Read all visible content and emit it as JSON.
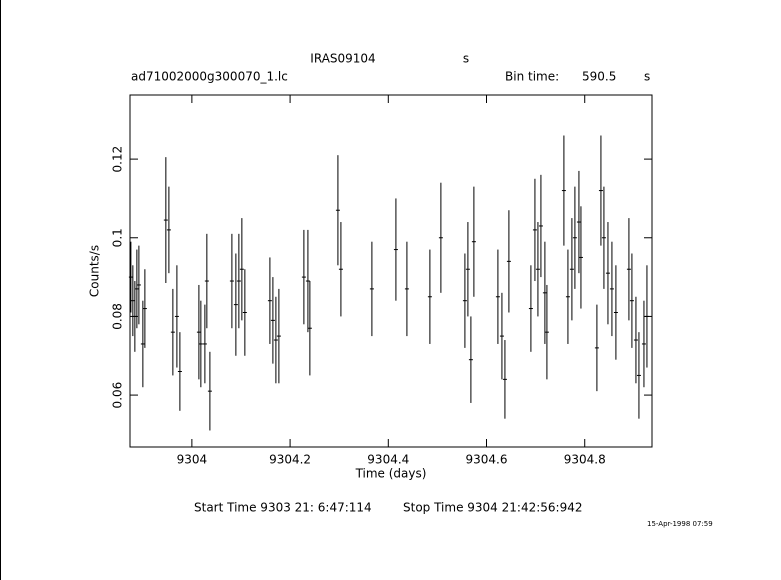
{
  "chart_data": {
    "type": "errorbar",
    "title": "IRAS09104",
    "title_unit": "s",
    "file_name": "ad71002000g300070_1.lc",
    "bin_time_label": "Bin time:",
    "bin_time": "590.5",
    "bin_time_unit": "s",
    "xlabel": "Time (days)",
    "ylabel": "Counts/s",
    "start_time": "Start Time  9303 21: 6:47:114",
    "stop_time": "Stop Time  9304 21:42:56:942",
    "date_stamp": "15-Apr-1998 07:59",
    "color": "#000000",
    "xlim": [
      9303.874,
      9304.937
    ],
    "ylim": [
      0.0468,
      0.1363
    ],
    "xticks": [
      9304,
      9304.2,
      9304.4,
      9304.6,
      9304.8
    ],
    "yticks": [
      0.06,
      0.08,
      0.1,
      0.12
    ],
    "x": [
      9303.8758,
      9303.8798,
      9303.8839,
      9303.888,
      9303.8921,
      9303.9002,
      9303.9043,
      9303.947,
      9303.9532,
      9303.9613,
      9303.9695,
      9303.9756,
      9304.0143,
      9304.0183,
      9304.0265,
      9304.0305,
      9304.0367,
      9304.0815,
      9304.0896,
      9304.0957,
      9304.1018,
      9304.1079,
      9304.1589,
      9304.165,
      9304.1711,
      9304.1772,
      9304.2281,
      9304.2363,
      9304.2403,
      9304.2974,
      9304.3035,
      9304.3666,
      9304.4155,
      9304.4379,
      9304.4847,
      9304.5071,
      9304.556,
      9304.5621,
      9304.5682,
      9304.5743,
      9304.6232,
      9304.6314,
      9304.6375,
      9304.6456,
      9304.6904,
      9304.6986,
      9304.7047,
      9304.7108,
      9304.7189,
      9304.723,
      9304.7576,
      9304.7658,
      9304.7739,
      9304.78,
      9304.7882,
      9304.7923,
      9304.8248,
      9304.833,
      9304.8391,
      9304.8473,
      9304.8554,
      9304.8635,
      9304.89,
      9304.8961,
      9304.9043,
      9304.9104,
      9304.9206,
      9304.9267
    ],
    "values": [
      0.09,
      0.084,
      0.08,
      0.087,
      0.088,
      0.073,
      0.082,
      0.1045,
      0.102,
      0.076,
      0.08,
      0.066,
      0.076,
      0.073,
      0.073,
      0.089,
      0.061,
      0.089,
      0.083,
      0.089,
      0.092,
      0.081,
      0.084,
      0.079,
      0.074,
      0.075,
      0.09,
      0.089,
      0.077,
      0.107,
      0.092,
      0.087,
      0.097,
      0.087,
      0.085,
      0.1,
      0.084,
      0.092,
      0.069,
      0.099,
      0.085,
      0.075,
      0.064,
      0.094,
      0.082,
      0.102,
      0.092,
      0.103,
      0.086,
      0.076,
      0.112,
      0.085,
      0.092,
      0.1,
      0.104,
      0.095,
      0.072,
      0.112,
      0.1,
      0.091,
      0.087,
      0.081,
      0.092,
      0.084,
      0.074,
      0.065,
      0.073,
      0.08
    ],
    "errors": [
      0.009,
      0.009,
      0.009,
      0.01,
      0.01,
      0.011,
      0.01,
      0.016,
      0.011,
      0.011,
      0.013,
      0.01,
      0.012,
      0.011,
      0.01,
      0.012,
      0.01,
      0.012,
      0.013,
      0.012,
      0.013,
      0.011,
      0.011,
      0.011,
      0.011,
      0.012,
      0.012,
      0.013,
      0.012,
      0.014,
      0.012,
      0.012,
      0.013,
      0.012,
      0.012,
      0.014,
      0.012,
      0.012,
      0.011,
      0.014,
      0.012,
      0.011,
      0.01,
      0.013,
      0.011,
      0.013,
      0.012,
      0.013,
      0.013,
      0.012,
      0.014,
      0.012,
      0.013,
      0.013,
      0.013,
      0.013,
      0.011,
      0.014,
      0.013,
      0.013,
      0.012,
      0.012,
      0.013,
      0.012,
      0.011,
      0.011,
      0.011,
      0.013
    ]
  }
}
